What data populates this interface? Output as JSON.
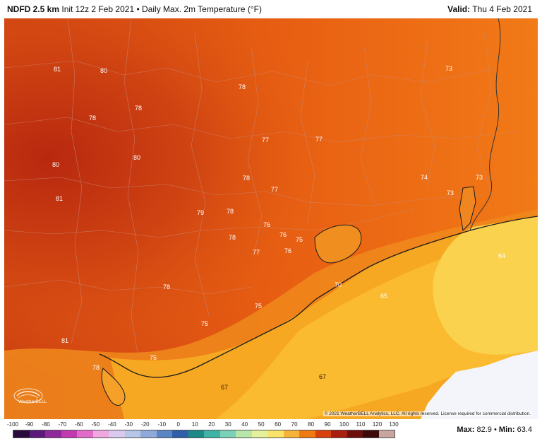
{
  "header": {
    "model": "NDFD 2.5 km",
    "init": "Init 12z 2 Feb 2021",
    "sep": "•",
    "product": "Daily Max. 2m Temperature (°F)",
    "valid_label": "Valid:",
    "valid_value": "Thu 4 Feb 2021"
  },
  "map": {
    "copyright": "© 2021 WeatherBELL Analytics, LLC. All rights reserved. License required for commercial distribution.",
    "logo_text": "WeatherBELL",
    "labels": [
      "81",
      "80",
      "78",
      "78",
      "80",
      "78",
      "80",
      "77",
      "77",
      "81",
      "78",
      "77",
      "73",
      "74",
      "73",
      "73",
      "79",
      "78",
      "76",
      "76",
      "75",
      "78",
      "77",
      "76",
      "64",
      "70",
      "65",
      "78",
      "75",
      "75",
      "81",
      "75",
      "78",
      "67",
      "67"
    ]
  },
  "colorbar": {
    "ticks": [
      "-100",
      "-90",
      "-80",
      "-70",
      "-60",
      "-50",
      "-40",
      "-30",
      "-20",
      "-10",
      "0",
      "10",
      "20",
      "30",
      "40",
      "50",
      "60",
      "70",
      "80",
      "90",
      "100",
      "110",
      "120",
      "130"
    ],
    "colors": [
      "#2b0a3d",
      "#5b1a7a",
      "#8e2a9a",
      "#c23ab0",
      "#e06bc8",
      "#f0a6df",
      "#d9c9ef",
      "#b7c5e6",
      "#8fa9d8",
      "#5b84c4",
      "#2f5fa8",
      "#1e8a88",
      "#3fb3a5",
      "#7bd0b8",
      "#b8e6a8",
      "#e3f19a",
      "#f9e36a",
      "#f7b23a",
      "#ef7a14",
      "#d8400c",
      "#a81f10",
      "#6c0f0d",
      "#3d0a0a",
      "#c7a6a0"
    ],
    "max_label": "Max:",
    "max_value": "82.9",
    "min_label": "Min:",
    "min_value": "63.4",
    "sep": "•"
  }
}
